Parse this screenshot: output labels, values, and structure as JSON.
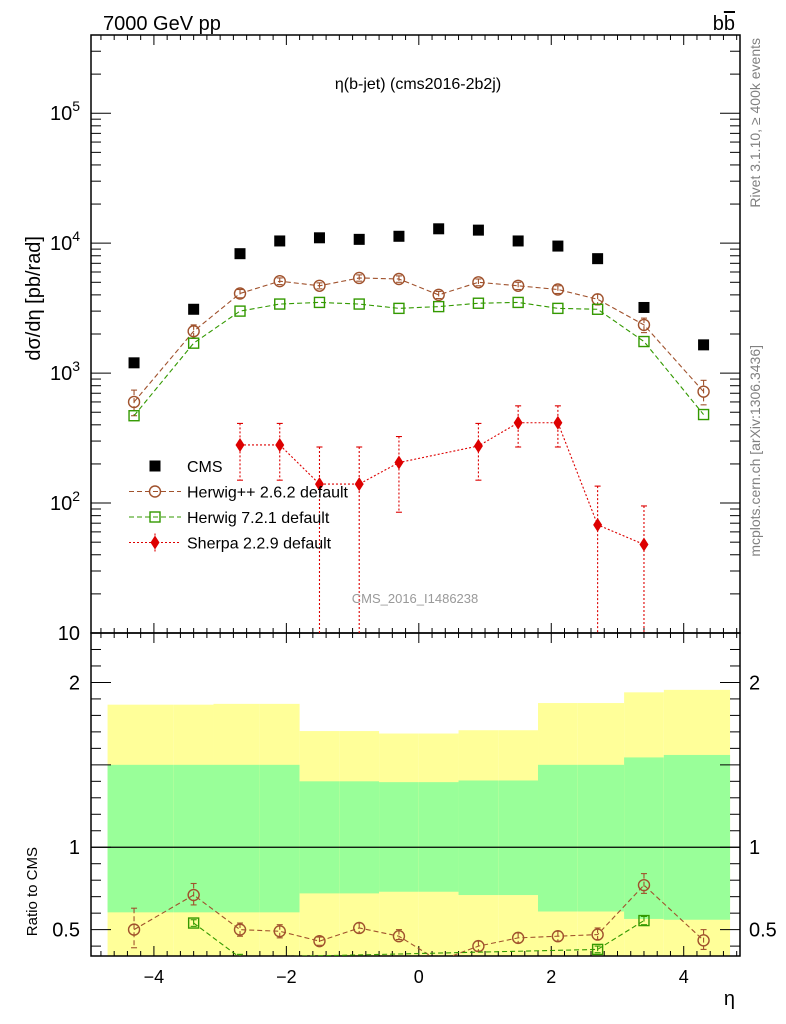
{
  "header": {
    "left": "7000 GeV pp",
    "right": "b",
    "right_overline": "b"
  },
  "side_texts": {
    "rivet": "Rivet 3.1.10, ≥ 400k events",
    "mcplots": "mcplots.cern.ch [arXiv:1306.3436]"
  },
  "watermark": "CMS_2016_I1486238",
  "chart_data": [
    {
      "type": "scatter",
      "title": "η(b-jet) (cms2016-2b2j)",
      "ylabel": "dσ/dη [pb/rad]",
      "xlabel": "",
      "xlim": [
        -4.95,
        4.85
      ],
      "ylim": [
        10,
        400000
      ],
      "yscale": "log",
      "yticks": [
        {
          "value": 10,
          "mant": "10",
          "exp": ""
        },
        {
          "value": 100,
          "mant": "10",
          "exp": "2"
        },
        {
          "value": 1000,
          "mant": "10",
          "exp": "3"
        },
        {
          "value": 10000,
          "mant": "10",
          "exp": "4"
        },
        {
          "value": 100000,
          "mant": "10",
          "exp": "5"
        }
      ],
      "legend_position": "lower-left",
      "series": [
        {
          "name": "CMS",
          "color": "#000000",
          "marker": "square-filled",
          "line": "none",
          "x": [
            -4.3,
            -3.4,
            -2.7,
            -2.1,
            -1.5,
            -0.9,
            -0.3,
            0.3,
            0.9,
            1.5,
            2.1,
            2.7,
            3.4,
            4.3
          ],
          "y": [
            1200,
            3100,
            8300,
            10400,
            11000,
            10700,
            11300,
            12900,
            12600,
            10400,
            9500,
            7600,
            3200,
            1650
          ]
        },
        {
          "name": "Herwig++ 2.6.2 default",
          "color": "#a0522d",
          "marker": "circle-open",
          "line": "dashed",
          "x": [
            -4.3,
            -3.4,
            -2.7,
            -2.1,
            -1.5,
            -0.9,
            -0.3,
            0.3,
            0.9,
            1.5,
            2.1,
            2.7,
            3.4,
            4.3
          ],
          "y": [
            600,
            2100,
            4100,
            5100,
            4700,
            5400,
            5300,
            4000,
            5000,
            4700,
            4400,
            3700,
            2350,
            720
          ],
          "err_low": [
            470,
            1850,
            3800,
            4800,
            4450,
            5100,
            5000,
            3750,
            4700,
            4400,
            4100,
            3350,
            2050,
            570
          ],
          "err_high": [
            740,
            2350,
            4400,
            5400,
            4950,
            5700,
            5600,
            4250,
            5300,
            5000,
            4700,
            4050,
            2650,
            880
          ]
        },
        {
          "name": "Herwig 7.2.1 default",
          "color": "#339900",
          "marker": "square-open",
          "line": "dashed",
          "x": [
            -4.3,
            -3.4,
            -2.7,
            -2.1,
            -1.5,
            -0.9,
            -0.3,
            0.3,
            0.9,
            1.5,
            2.1,
            2.7,
            3.4,
            4.3
          ],
          "y": [
            470,
            1700,
            3000,
            3400,
            3500,
            3400,
            3150,
            3250,
            3450,
            3500,
            3150,
            3100,
            1750,
            480
          ]
        },
        {
          "name": "Sherpa 2.2.9 default",
          "color": "#dd0000",
          "marker": "diamond-filled",
          "line": "dotted",
          "x": [
            -2.7,
            -2.1,
            -1.5,
            -0.9,
            -0.3,
            0.9,
            1.5,
            2.1,
            2.7,
            3.4
          ],
          "y": [
            280,
            280,
            140,
            140,
            205,
            275,
            415,
            415,
            68,
            48
          ],
          "err_low": [
            150,
            150,
            10,
            10,
            85,
            150,
            270,
            270,
            1,
            1
          ],
          "err_high": [
            410,
            410,
            270,
            270,
            325,
            410,
            560,
            560,
            135,
            95
          ]
        }
      ]
    },
    {
      "type": "scatter",
      "xlabel": "η",
      "ylabel": "Ratio to CMS",
      "xlim": [
        -4.95,
        4.85
      ],
      "ylim": [
        0.34,
        2.3
      ],
      "xticks": [
        -4,
        -2,
        0,
        2,
        4
      ],
      "yticks": [
        0.5,
        1,
        2
      ],
      "reference_line": 1,
      "bands": {
        "edges": [
          -4.7,
          -3.7,
          -3.1,
          -2.4,
          -1.8,
          -1.2,
          -0.6,
          0.0,
          0.6,
          1.2,
          1.8,
          2.4,
          3.1,
          3.7,
          4.7
        ],
        "inner_color": "#99ff99",
        "outer_color": "#ffff99",
        "inner_low": [
          0.605,
          0.605,
          0.605,
          0.605,
          0.72,
          0.72,
          0.73,
          0.73,
          0.71,
          0.71,
          0.61,
          0.61,
          0.565,
          0.56
        ],
        "inner_high": [
          1.5,
          1.5,
          1.5,
          1.5,
          1.4,
          1.4,
          1.395,
          1.395,
          1.405,
          1.405,
          1.5,
          1.5,
          1.545,
          1.56
        ],
        "outer_low": [
          0.34,
          0.34,
          0.34,
          0.34,
          0.34,
          0.34,
          0.34,
          0.34,
          0.34,
          0.34,
          0.34,
          0.34,
          0.34,
          0.34
        ],
        "outer_high": [
          1.865,
          1.865,
          1.87,
          1.87,
          1.705,
          1.705,
          1.69,
          1.69,
          1.71,
          1.71,
          1.875,
          1.875,
          1.94,
          1.955
        ]
      },
      "series": [
        {
          "name": "Herwig++ 2.6.2 default",
          "color": "#a0522d",
          "marker": "circle-open",
          "line": "dashed",
          "x": [
            -4.3,
            -3.4,
            -2.7,
            -2.1,
            -1.5,
            -0.9,
            -0.3,
            0.3,
            0.9,
            1.5,
            2.1,
            2.7,
            3.4,
            4.3
          ],
          "y": [
            0.5,
            0.71,
            0.5,
            0.49,
            0.43,
            0.51,
            0.46,
            0.31,
            0.4,
            0.45,
            0.46,
            0.47,
            0.77,
            0.435
          ],
          "err_low": [
            0.39,
            0.65,
            0.46,
            0.45,
            0.405,
            0.48,
            0.44,
            0.29,
            0.37,
            0.42,
            0.43,
            0.44,
            0.72,
            0.38
          ],
          "err_high": [
            0.63,
            0.78,
            0.54,
            0.53,
            0.455,
            0.54,
            0.5,
            0.33,
            0.43,
            0.48,
            0.49,
            0.51,
            0.84,
            0.5
          ]
        },
        {
          "name": "Herwig 7.2.1 default",
          "color": "#339900",
          "marker": "square-open",
          "line": "dashed",
          "x": [
            -3.4,
            -2.7,
            2.7,
            3.4
          ],
          "y": [
            0.54,
            0.33,
            0.38,
            0.555
          ],
          "err_low": [
            0.52,
            0.31,
            0.36,
            0.53
          ],
          "err_high": [
            0.56,
            0.35,
            0.4,
            0.58
          ]
        }
      ]
    }
  ]
}
